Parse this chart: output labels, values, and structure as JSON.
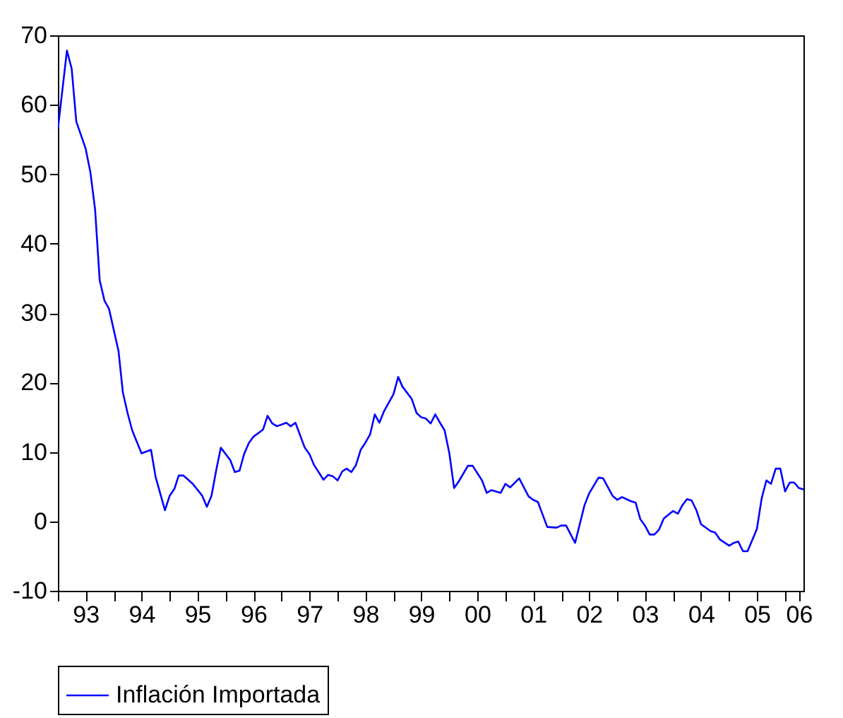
{
  "chart_data": {
    "type": "line",
    "xlim": [
      "1993-01",
      "2006-05"
    ],
    "ylim": [
      -10,
      70
    ],
    "yticks": [
      -10,
      0,
      10,
      20,
      30,
      40,
      50,
      60,
      70
    ],
    "xticks": [
      {
        "value": "1993-01",
        "label": null
      },
      {
        "value": "1993-07",
        "label": "93"
      },
      {
        "value": "1994-01",
        "label": null
      },
      {
        "value": "1994-07",
        "label": "94"
      },
      {
        "value": "1995-01",
        "label": null
      },
      {
        "value": "1995-07",
        "label": "95"
      },
      {
        "value": "1996-01",
        "label": null
      },
      {
        "value": "1996-07",
        "label": "96"
      },
      {
        "value": "1997-01",
        "label": null
      },
      {
        "value": "1997-07",
        "label": "97"
      },
      {
        "value": "1998-01",
        "label": null
      },
      {
        "value": "1998-07",
        "label": "98"
      },
      {
        "value": "1999-01",
        "label": null
      },
      {
        "value": "1999-07",
        "label": "99"
      },
      {
        "value": "2000-01",
        "label": null
      },
      {
        "value": "2000-07",
        "label": "00"
      },
      {
        "value": "2001-01",
        "label": null
      },
      {
        "value": "2001-07",
        "label": "01"
      },
      {
        "value": "2002-01",
        "label": null
      },
      {
        "value": "2002-07",
        "label": "02"
      },
      {
        "value": "2003-01",
        "label": null
      },
      {
        "value": "2003-07",
        "label": "03"
      },
      {
        "value": "2004-01",
        "label": null
      },
      {
        "value": "2004-07",
        "label": "04"
      },
      {
        "value": "2005-01",
        "label": null
      },
      {
        "value": "2005-07",
        "label": "05"
      },
      {
        "value": "2006-01",
        "label": null
      },
      {
        "value": "2006-04",
        "label": "06"
      }
    ],
    "grid": false,
    "legend": "bottom",
    "series": [
      {
        "name": "Inflación Importada",
        "color": "#0000ff",
        "x": [
          "1993-01",
          "1993-03",
          "1993-04",
          "1993-05",
          "1993-07",
          "1993-08",
          "1993-09",
          "1993-10",
          "1993-11",
          "1993-12",
          "1994-02",
          "1994-03",
          "1994-04",
          "1994-05",
          "1994-07",
          "1994-09",
          "1994-10",
          "1994-12",
          "1995-01",
          "1995-02",
          "1995-03",
          "1995-04",
          "1995-06",
          "1995-08",
          "1995-09",
          "1995-10",
          "1995-11",
          "1995-12",
          "1996-02",
          "1996-03",
          "1996-04",
          "1996-05",
          "1996-06",
          "1996-07",
          "1996-09",
          "1996-10",
          "1996-11",
          "1996-12",
          "1997-02",
          "1997-03",
          "1997-04",
          "1997-06",
          "1997-07",
          "1997-08",
          "1997-10",
          "1997-11",
          "1997-12",
          "1998-01",
          "1998-02",
          "1998-03",
          "1998-04",
          "1998-05",
          "1998-06",
          "1998-07",
          "1998-08",
          "1998-09",
          "1998-10",
          "1998-11",
          "1999-01",
          "1999-02",
          "1999-03",
          "1999-05",
          "1999-06",
          "1999-07",
          "1999-08",
          "1999-09",
          "1999-10",
          "1999-11",
          "1999-12",
          "2000-01",
          "2000-02",
          "2000-03",
          "2000-05",
          "2000-06",
          "2000-08",
          "2000-09",
          "2000-10",
          "2000-12",
          "2001-01",
          "2001-02",
          "2001-04",
          "2001-06",
          "2001-07",
          "2001-08",
          "2001-10",
          "2001-12",
          "2002-01",
          "2002-02",
          "2002-04",
          "2002-06",
          "2002-07",
          "2002-09",
          "2002-10",
          "2002-12",
          "2003-01",
          "2003-02",
          "2003-04",
          "2003-05",
          "2003-06",
          "2003-07",
          "2003-08",
          "2003-09",
          "2003-10",
          "2003-11",
          "2004-01",
          "2004-02",
          "2004-03",
          "2004-04",
          "2004-05",
          "2004-06",
          "2004-07",
          "2004-09",
          "2004-10",
          "2004-11",
          "2005-01",
          "2005-02",
          "2005-03",
          "2005-04",
          "2005-05",
          "2005-07",
          "2005-08",
          "2005-09",
          "2005-10",
          "2005-11",
          "2005-12",
          "2006-01",
          "2006-02",
          "2006-03",
          "2006-04",
          "2006-05"
        ],
        "values": [
          56.5,
          67.8,
          65.2,
          57.6,
          53.7,
          50.3,
          44.9,
          34.7,
          31.8,
          30.6,
          24.5,
          18.6,
          15.6,
          13.1,
          9.8,
          10.3,
          6.4,
          1.6,
          3.7,
          4.7,
          6.6,
          6.6,
          5.4,
          3.7,
          2.1,
          3.7,
          7.4,
          10.6,
          8.8,
          7.1,
          7.3,
          9.7,
          11.3,
          12.2,
          13.2,
          15.2,
          14.1,
          13.7,
          14.2,
          13.7,
          14.2,
          10.6,
          9.7,
          8.1,
          6.0,
          6.7,
          6.5,
          5.9,
          7.2,
          7.6,
          7.1,
          8.1,
          10.3,
          11.3,
          12.5,
          15.4,
          14.2,
          15.9,
          18.3,
          20.8,
          19.4,
          17.6,
          15.6,
          15.0,
          14.8,
          14.1,
          15.4,
          14.2,
          13.1,
          9.8,
          4.8,
          5.7,
          8.0,
          8.0,
          5.9,
          4.1,
          4.5,
          4.1,
          5.4,
          4.9,
          6.2,
          3.6,
          3.1,
          2.8,
          -0.8,
          -0.9,
          -0.6,
          -0.6,
          -3.1,
          2.3,
          4.0,
          6.3,
          6.2,
          3.7,
          3.1,
          3.5,
          2.9,
          2.7,
          0.3,
          -0.6,
          -1.9,
          -1.9,
          -1.2,
          0.4,
          1.5,
          1.1,
          2.3,
          3.2,
          3.0,
          1.6,
          -0.4,
          -1.4,
          -1.6,
          -2.6,
          -3.5,
          -3.1,
          -2.9,
          -4.3,
          -4.3,
          -1.1,
          3.3,
          5.9,
          5.4,
          7.6,
          7.6,
          4.3,
          5.6,
          5.6,
          4.8,
          4.6
        ]
      }
    ]
  }
}
